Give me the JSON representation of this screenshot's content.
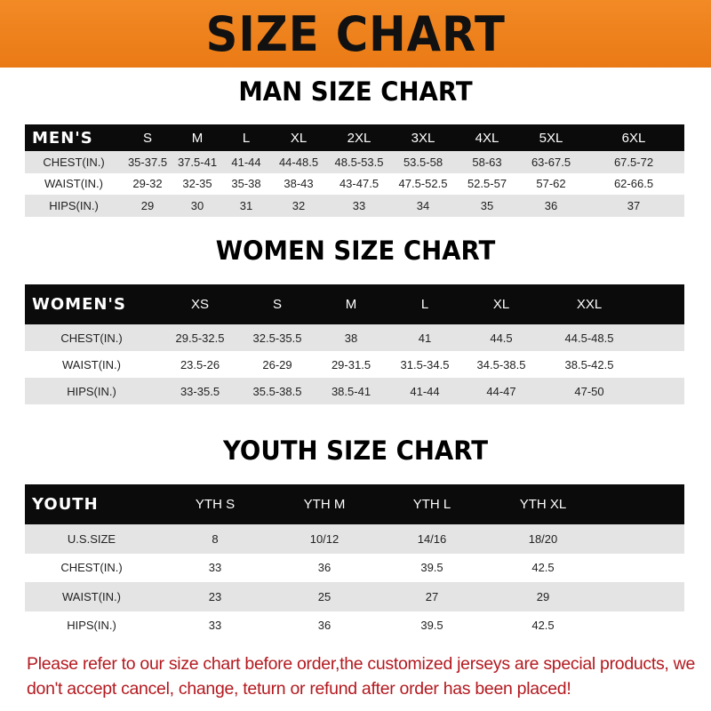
{
  "banner": {
    "title": "SIZE CHART",
    "color": "#f08220"
  },
  "men": {
    "title": "MAN SIZE CHART",
    "header": [
      "MEN'S",
      "S",
      "M",
      "L",
      "XL",
      "2XL",
      "3XL",
      "4XL",
      "5XL",
      "6XL"
    ],
    "rows": [
      [
        "CHEST(IN.)",
        "35-37.5",
        "37.5-41",
        "41-44",
        "44-48.5",
        "48.5-53.5",
        "53.5-58",
        "58-63",
        "63-67.5",
        "67.5-72"
      ],
      [
        "WAIST(IN.)",
        "29-32",
        "32-35",
        "35-38",
        "38-43",
        "43-47.5",
        "47.5-52.5",
        "52.5-57",
        "57-62",
        "62-66.5"
      ],
      [
        "HIPS(IN.)",
        "29",
        "30",
        "31",
        "32",
        "33",
        "34",
        "35",
        "36",
        "37"
      ]
    ]
  },
  "women": {
    "title": "WOMEN SIZE CHART",
    "header": [
      "WOMEN'S",
      "XS",
      "S",
      "M",
      "L",
      "XL",
      "XXL"
    ],
    "rows": [
      [
        "CHEST(IN.)",
        "29.5-32.5",
        "32.5-35.5",
        "38",
        "41",
        "44.5",
        "44.5-48.5"
      ],
      [
        "WAIST(IN.)",
        "23.5-26",
        "26-29",
        "29-31.5",
        "31.5-34.5",
        "34.5-38.5",
        "38.5-42.5"
      ],
      [
        "HIPS(IN.)",
        "33-35.5",
        "35.5-38.5",
        "38.5-41",
        "41-44",
        "44-47",
        "47-50"
      ]
    ]
  },
  "youth": {
    "title": "YOUTH SIZE CHART",
    "header": [
      "YOUTH",
      "YTH S",
      "YTH M",
      "YTH L",
      "YTH XL"
    ],
    "rows": [
      [
        "U.S.SIZE",
        "8",
        "10/12",
        "14/16",
        "18/20"
      ],
      [
        "CHEST(IN.)",
        "33",
        "36",
        "39.5",
        "42.5"
      ],
      [
        "WAIST(IN.)",
        "23",
        "25",
        "27",
        "29"
      ],
      [
        "HIPS(IN.)",
        "33",
        "36",
        "39.5",
        "42.5"
      ]
    ]
  },
  "notice": {
    "text": "Please refer to our size chart before order,the customized jerseys are special products, we don't accept cancel, change, teturn or refund after order has been placed!",
    "color": "#b3191f"
  }
}
